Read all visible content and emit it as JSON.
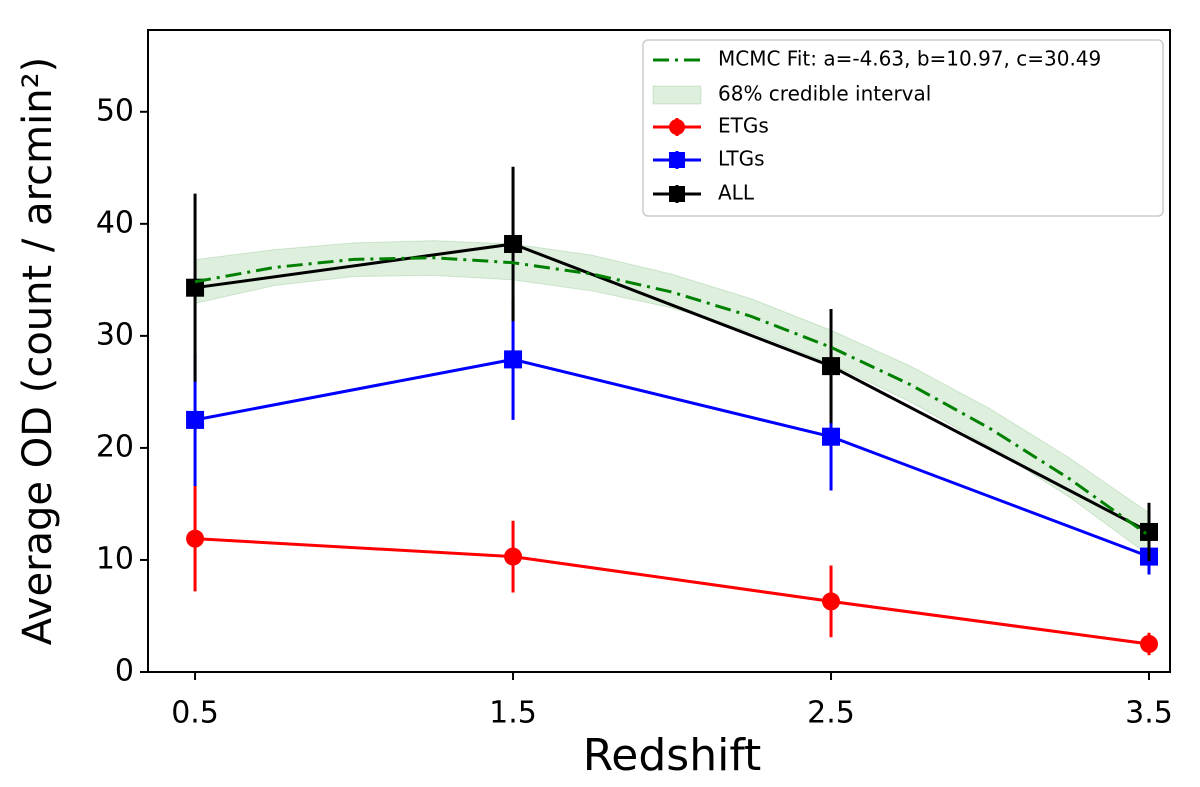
{
  "chart_data": {
    "type": "line",
    "x_label": "Redshift",
    "y_label": "Average OD (count / arcmin²)",
    "x": [
      0.5,
      1.5,
      2.5,
      3.5
    ],
    "xlim": [
      0.352,
      3.566
    ],
    "ylim": [
      0,
      57.3
    ],
    "xticks": [
      0.5,
      1.5,
      2.5,
      3.5
    ],
    "yticks": [
      0,
      10,
      20,
      30,
      40,
      50
    ],
    "legend": "upper right",
    "fit": {
      "name": "MCMC Fit: a=-4.63, b=10.97, c=30.49",
      "color": "#008000",
      "x": [
        0.5,
        0.75,
        1.0,
        1.25,
        1.5,
        1.75,
        2.0,
        2.25,
        2.5,
        2.75,
        3.0,
        3.25,
        3.5
      ],
      "values": [
        34.83,
        36.11,
        36.83,
        36.97,
        36.53,
        35.51,
        33.91,
        31.73,
        28.98,
        25.64,
        21.73,
        17.24,
        12.17
      ]
    },
    "band": {
      "name": "68% credible interval",
      "color": "#008000",
      "lower": [
        32.9,
        34.5,
        35.3,
        35.4,
        35.0,
        34.0,
        32.5,
        30.3,
        27.5,
        24.1,
        20.1,
        15.6,
        10.4
      ],
      "upper": [
        36.8,
        37.7,
        38.3,
        38.5,
        38.2,
        37.2,
        35.5,
        33.3,
        30.5,
        27.3,
        23.5,
        19.1,
        14.2
      ]
    },
    "series": [
      {
        "name": "ETGs",
        "color": "#ff0000",
        "marker": "circle",
        "values": [
          11.9,
          10.3,
          6.3,
          2.5
        ],
        "errors": [
          4.7,
          3.2,
          3.2,
          1.0
        ]
      },
      {
        "name": "LTGs",
        "color": "#0000ff",
        "marker": "square",
        "values": [
          22.5,
          27.9,
          21.0,
          10.3
        ],
        "errors": [
          5.9,
          5.4,
          4.8,
          1.6
        ]
      },
      {
        "name": "ALL",
        "color": "#000000",
        "marker": "square",
        "values": [
          34.3,
          38.2,
          27.3,
          12.5
        ],
        "errors": [
          8.4,
          6.9,
          5.1,
          2.6
        ]
      }
    ]
  }
}
